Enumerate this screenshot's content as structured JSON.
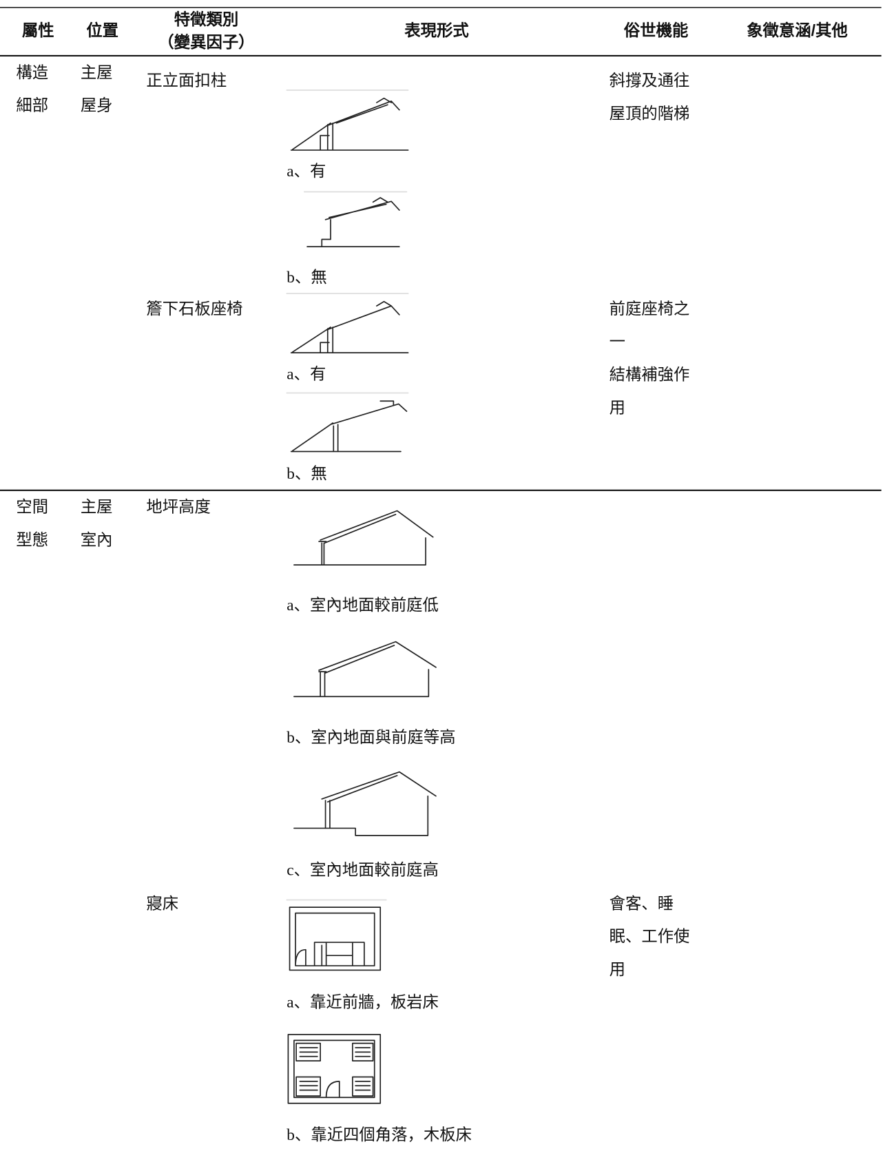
{
  "table": {
    "columns": [
      [
        "屬性"
      ],
      [
        "位置"
      ],
      [
        "特徵類別",
        "（變異因子）"
      ],
      [
        "表現形式"
      ],
      [
        "俗世機能"
      ],
      [
        "象徵意涵/其他"
      ]
    ],
    "groups": [
      {
        "attribute": [
          "構造",
          "細部"
        ],
        "location": [
          "主屋",
          "屋身"
        ],
        "features": [
          {
            "name": "正立面扣柱",
            "forms": [
              "a、有",
              "b、無"
            ],
            "function": [
              "斜撐及通往",
              "屋頂的階梯"
            ]
          },
          {
            "name": "簷下石板座椅",
            "forms": [
              "a、有",
              "b、無"
            ],
            "function": [
              "前庭座椅之",
              "一",
              "結構補強作",
              "用"
            ]
          }
        ]
      },
      {
        "attribute": [
          "空間",
          "型態"
        ],
        "location": [
          "主屋",
          "室內"
        ],
        "features": [
          {
            "name": "地坪高度",
            "forms": [
              "a、室內地面較前庭低",
              "b、室內地面與前庭等高",
              "c、室內地面較前庭高"
            ]
          },
          {
            "name": "寢床",
            "forms": [
              "a、靠近前牆，板岩床",
              "b、靠近四個角落，木板床"
            ],
            "function": [
              "會客、睡",
              "眠、工作使",
              "用"
            ]
          }
        ]
      }
    ]
  }
}
